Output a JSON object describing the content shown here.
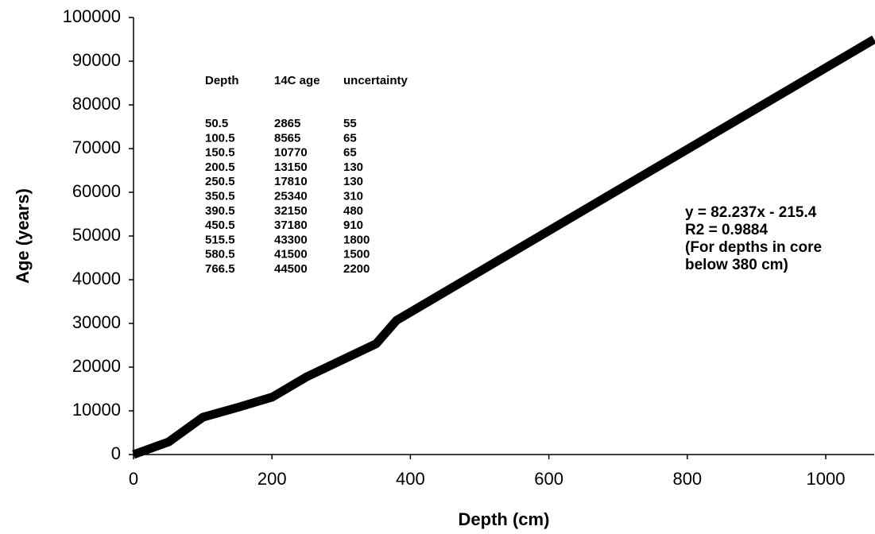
{
  "chart_data": {
    "type": "line",
    "xlabel": "Depth (cm)",
    "ylabel": "Age (years)",
    "x": [
      0,
      50.5,
      100.5,
      150.5,
      200.5,
      250.5,
      350.5,
      380,
      1070
    ],
    "values": [
      0,
      2865,
      8565,
      10770,
      13150,
      17810,
      25340,
      30700,
      95000
    ],
    "color": "#000000",
    "xlim": [
      0,
      1070
    ],
    "ylim": [
      0,
      100000
    ],
    "xticks": [
      0,
      200,
      400,
      600,
      800,
      1000
    ],
    "yticks": [
      0,
      10000,
      20000,
      30000,
      40000,
      50000,
      60000,
      70000,
      80000,
      90000,
      100000
    ],
    "grid": false,
    "table": {
      "header": [
        "Depth",
        "14C age",
        "uncertainty"
      ],
      "rows": [
        [
          50.5,
          2865,
          55
        ],
        [
          100.5,
          8565,
          65
        ],
        [
          150.5,
          10770,
          65
        ],
        [
          200.5,
          13150,
          130
        ],
        [
          250.5,
          17810,
          130
        ],
        [
          350.5,
          25340,
          310
        ],
        [
          390.5,
          32150,
          480
        ],
        [
          450.5,
          37180,
          910
        ],
        [
          515.5,
          43300,
          1800
        ],
        [
          580.5,
          41500,
          1500
        ],
        [
          766.5,
          44500,
          2200
        ]
      ]
    },
    "annotation": [
      "y = 82.237x - 215.4",
      "R2 = 0.9884",
      "(For depths in core",
      "below 380 cm)"
    ]
  }
}
